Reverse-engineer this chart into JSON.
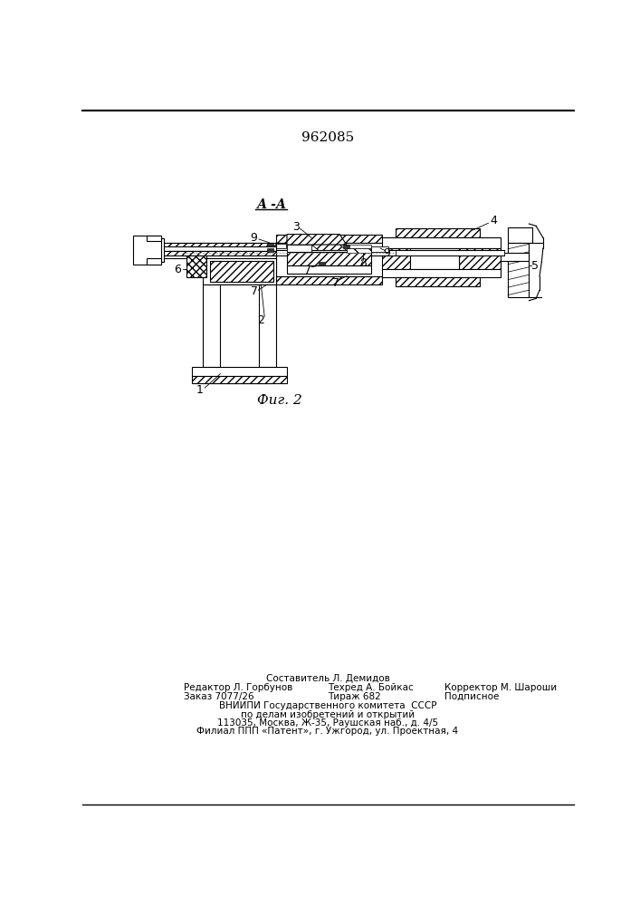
{
  "patent_number": "962085",
  "fig_label": "Фиг. 2",
  "section_label": "А -А",
  "background_color": "#ffffff",
  "line_color": "#000000",
  "title_fontsize": 11,
  "anno_fontsize": 9,
  "footer_lines": [
    "Составитель Л. Демидов",
    "Редактор Л. Горбунов",
    "Техред А. Бойкас",
    "Корректор М. Шароши",
    "Заказ 7077/26",
    "Тираж 682",
    "Подписное",
    "ВНИИПИ Государственного комитета  СССР",
    "по делам изобретений и открытий",
    "113035, Москва, Ж-35, Раушская наб., д. 4/5",
    "Филиал ППП «Патент», г. Ужгород, ул. Проектная, 4"
  ]
}
